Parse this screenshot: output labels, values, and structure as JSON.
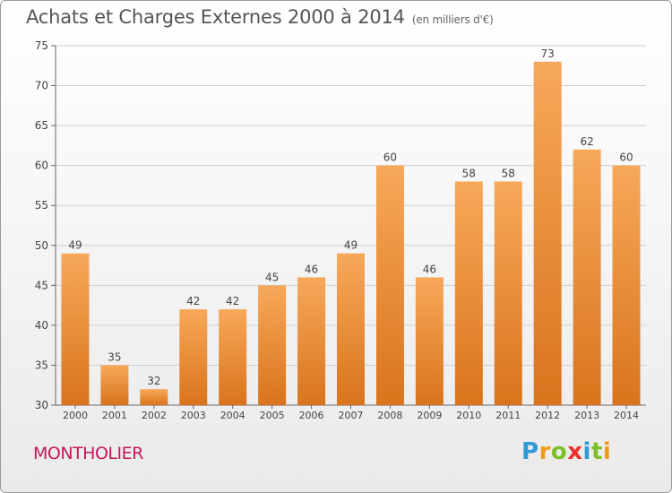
{
  "title": "Achats et Charges Externes 2000 à 2014",
  "subtitle": "(en milliers d'€)",
  "commune": "MONTHOLIER",
  "logo": {
    "letters": [
      "P",
      "r",
      "o",
      "x",
      "i",
      "t",
      "i"
    ],
    "colors": [
      "#2e9ad6",
      "#f39a1e",
      "#7cbf2a",
      "#e8322d",
      "#2e9ad6",
      "#7cbf2a",
      "#f39a1e"
    ]
  },
  "colors": {
    "bar_top": "#f7a85a",
    "bar_bottom": "#d9741c",
    "text": "#444444",
    "accent": "#c2185b"
  },
  "chart_data": {
    "type": "bar",
    "categories": [
      "2000",
      "2001",
      "2002",
      "2003",
      "2004",
      "2005",
      "2006",
      "2007",
      "2008",
      "2009",
      "2010",
      "2011",
      "2012",
      "2013",
      "2014"
    ],
    "values": [
      49,
      35,
      32,
      42,
      42,
      45,
      46,
      49,
      60,
      46,
      58,
      58,
      73,
      62,
      60
    ],
    "ylim": [
      30,
      75
    ],
    "yticks": [
      30,
      35,
      40,
      45,
      50,
      55,
      60,
      65,
      70,
      75
    ],
    "grid": true,
    "data_labels": true
  }
}
